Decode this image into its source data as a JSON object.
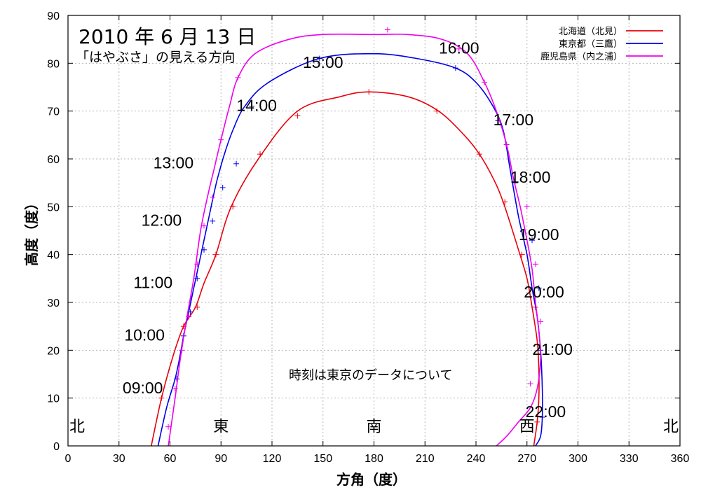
{
  "chart_data": {
    "type": "line",
    "title": "2010 年 6 月 13 日",
    "subtitle": "「はやぶさ」の見える方向",
    "xlabel": "方角（度）",
    "ylabel": "高度（度）",
    "xlim": [
      0,
      360
    ],
    "ylim": [
      0,
      90
    ],
    "x_ticks": [
      "0",
      "30",
      "60",
      "90",
      "120",
      "150",
      "180",
      "210",
      "240",
      "270",
      "300",
      "330",
      "360"
    ],
    "y_ticks": [
      "0",
      "10",
      "20",
      "30",
      "40",
      "50",
      "60",
      "70",
      "80",
      "90"
    ],
    "grid": true,
    "legend_position": "top-right",
    "directions": [
      {
        "label": "北",
        "azimuth": 0
      },
      {
        "label": "東",
        "azimuth": 90
      },
      {
        "label": "南",
        "azimuth": 180
      },
      {
        "label": "西",
        "azimuth": 270
      },
      {
        "label": "北",
        "azimuth": 360
      }
    ],
    "note": "時刻は東京のデータについて",
    "time_labels": [
      {
        "text": "09:00",
        "x": 44,
        "y": 11
      },
      {
        "text": "10:00",
        "x": 45,
        "y": 22
      },
      {
        "text": "11:00",
        "x": 50,
        "y": 33
      },
      {
        "text": "12:00",
        "x": 55,
        "y": 46
      },
      {
        "text": "13:00",
        "x": 62,
        "y": 58
      },
      {
        "text": "14:00",
        "x": 111,
        "y": 70
      },
      {
        "text": "15:00",
        "x": 150,
        "y": 79
      },
      {
        "text": "16:00",
        "x": 230,
        "y": 82
      },
      {
        "text": "17:00",
        "x": 262,
        "y": 67
      },
      {
        "text": "18:00",
        "x": 272,
        "y": 55
      },
      {
        "text": "19:00",
        "x": 277,
        "y": 43
      },
      {
        "text": "20:00",
        "x": 280,
        "y": 31
      },
      {
        "text": "21:00",
        "x": 285,
        "y": 19
      },
      {
        "text": "22:00",
        "x": 281,
        "y": 6
      }
    ],
    "series": [
      {
        "name": "北海道（北見）",
        "color": "#e8000b",
        "points": [
          [
            49,
            0
          ],
          [
            55,
            10
          ],
          [
            62,
            19
          ],
          [
            68,
            25
          ],
          [
            75,
            29
          ],
          [
            80,
            34
          ],
          [
            87,
            40
          ],
          [
            96,
            50
          ],
          [
            112,
            60
          ],
          [
            135,
            70
          ],
          [
            160,
            73
          ],
          [
            177,
            74
          ],
          [
            200,
            73
          ],
          [
            218,
            70
          ],
          [
            233,
            65
          ],
          [
            242,
            61
          ],
          [
            250,
            56
          ],
          [
            256,
            51
          ],
          [
            265,
            41
          ],
          [
            270,
            35
          ],
          [
            273,
            29
          ],
          [
            276,
            22
          ],
          [
            277,
            16
          ],
          [
            277,
            10
          ],
          [
            276,
            5
          ],
          [
            274,
            0
          ]
        ],
        "marks": [
          [
            55,
            10
          ],
          [
            68,
            25
          ],
          [
            76,
            29
          ],
          [
            87,
            40
          ],
          [
            97,
            50
          ],
          [
            113,
            61
          ],
          [
            135,
            69
          ],
          [
            177,
            74
          ],
          [
            217,
            70
          ],
          [
            242,
            61
          ],
          [
            257,
            51
          ],
          [
            267,
            40
          ],
          [
            275,
            29
          ],
          [
            276,
            5
          ]
        ]
      },
      {
        "name": "東京都（三鷹）",
        "color": "#0000e8",
        "points": [
          [
            53,
            0
          ],
          [
            58,
            8
          ],
          [
            63,
            14
          ],
          [
            66,
            19
          ],
          [
            68,
            23
          ],
          [
            71,
            28
          ],
          [
            74,
            33
          ],
          [
            77,
            38
          ],
          [
            80,
            43
          ],
          [
            83,
            48
          ],
          [
            86,
            53
          ],
          [
            88,
            56
          ],
          [
            92,
            61
          ],
          [
            97,
            66
          ],
          [
            104,
            71
          ],
          [
            118,
            76
          ],
          [
            148,
            81
          ],
          [
            180,
            82
          ],
          [
            205,
            81
          ],
          [
            228,
            79
          ],
          [
            240,
            76
          ],
          [
            250,
            71
          ],
          [
            256,
            66
          ],
          [
            260,
            58
          ],
          [
            265,
            48
          ],
          [
            270,
            40
          ],
          [
            273,
            33
          ],
          [
            276,
            27
          ],
          [
            278,
            20
          ],
          [
            279,
            12
          ],
          [
            279,
            6
          ],
          [
            278,
            2
          ],
          [
            275,
            0
          ]
        ],
        "marks": [
          [
            64,
            14
          ],
          [
            68,
            23
          ],
          [
            72,
            28
          ],
          [
            76,
            35
          ],
          [
            80,
            41
          ],
          [
            85,
            47
          ],
          [
            91,
            54
          ],
          [
            99,
            59
          ],
          [
            108,
            71
          ],
          [
            148,
            81
          ],
          [
            228,
            79
          ],
          [
            253,
            68
          ],
          [
            263,
            55
          ],
          [
            273,
            43
          ],
          [
            277,
            33
          ],
          [
            278,
            20
          ],
          [
            279,
            6
          ]
        ]
      },
      {
        "name": "鹿児島県（内之浦）",
        "color": "#ee00ee",
        "points": [
          [
            59,
            0
          ],
          [
            63,
            10
          ],
          [
            66,
            18
          ],
          [
            70,
            27
          ],
          [
            74,
            35
          ],
          [
            78,
            45
          ],
          [
            82,
            52
          ],
          [
            86,
            58
          ],
          [
            90,
            64
          ],
          [
            95,
            71
          ],
          [
            100,
            77
          ],
          [
            110,
            82
          ],
          [
            130,
            85
          ],
          [
            150,
            86
          ],
          [
            180,
            86
          ],
          [
            200,
            86
          ],
          [
            220,
            85
          ],
          [
            235,
            82
          ],
          [
            245,
            76
          ],
          [
            252,
            70
          ],
          [
            258,
            63
          ],
          [
            262,
            56
          ],
          [
            266,
            50
          ],
          [
            270,
            43
          ],
          [
            273,
            37
          ],
          [
            275,
            30
          ],
          [
            277,
            24
          ],
          [
            278,
            18
          ],
          [
            276,
            12
          ],
          [
            272,
            8
          ],
          [
            265,
            5
          ],
          [
            258,
            2
          ],
          [
            252,
            0
          ]
        ],
        "marks": [
          [
            59,
            4
          ],
          [
            63,
            12
          ],
          [
            67,
            20
          ],
          [
            71,
            27
          ],
          [
            76,
            38
          ],
          [
            80,
            46
          ],
          [
            85,
            52
          ],
          [
            90,
            64
          ],
          [
            100,
            77
          ],
          [
            188,
            87
          ],
          [
            230,
            83
          ],
          [
            245,
            76
          ],
          [
            258,
            63
          ],
          [
            270,
            50
          ],
          [
            275,
            38
          ],
          [
            278,
            26
          ],
          [
            272,
            13
          ]
        ]
      }
    ]
  }
}
